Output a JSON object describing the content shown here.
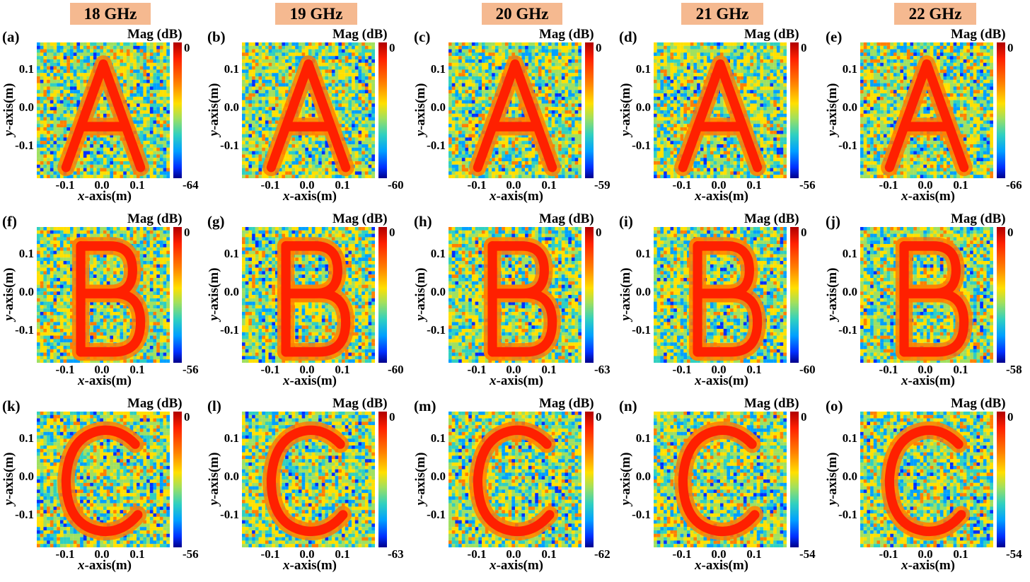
{
  "frequencies": [
    "18 GHz",
    "19 GHz",
    "20 GHz",
    "21 GHz",
    "22 GHz"
  ],
  "colorbar_title": "Mag (dB)",
  "colormap": [
    "#00008a",
    "#0030ff",
    "#00a0ff",
    "#30d0c0",
    "#9fe060",
    "#ffe000",
    "#ff8000",
    "#ff2000",
    "#b00000"
  ],
  "axes": {
    "xlabel_var": "x",
    "xlabel_rest": "-axis(m)",
    "ylabel_var": "y",
    "ylabel_rest": "-axis(m)",
    "x_ticks": [
      "-0.1",
      "0.0",
      "0.1"
    ],
    "y_ticks": [
      "0.1",
      "0.0",
      "-0.1"
    ]
  },
  "chart_data": [
    {
      "type": "heatmap",
      "panel": "(a)",
      "frequency": "18 GHz",
      "letter": "A",
      "colorbar_max": "0",
      "colorbar_min": "-64",
      "xlim": [
        -0.18,
        0.18
      ],
      "ylim": [
        -0.18,
        0.18
      ]
    },
    {
      "type": "heatmap",
      "panel": "(b)",
      "frequency": "19 GHz",
      "letter": "A",
      "colorbar_max": "0",
      "colorbar_min": "-60",
      "xlim": [
        -0.18,
        0.18
      ],
      "ylim": [
        -0.18,
        0.18
      ]
    },
    {
      "type": "heatmap",
      "panel": "(c)",
      "frequency": "20 GHz",
      "letter": "A",
      "colorbar_max": "0",
      "colorbar_min": "-59",
      "xlim": [
        -0.18,
        0.18
      ],
      "ylim": [
        -0.18,
        0.18
      ]
    },
    {
      "type": "heatmap",
      "panel": "(d)",
      "frequency": "21 GHz",
      "letter": "A",
      "colorbar_max": "0",
      "colorbar_min": "-56",
      "xlim": [
        -0.18,
        0.18
      ],
      "ylim": [
        -0.18,
        0.18
      ]
    },
    {
      "type": "heatmap",
      "panel": "(e)",
      "frequency": "22 GHz",
      "letter": "A",
      "colorbar_max": "0",
      "colorbar_min": "-66",
      "xlim": [
        -0.18,
        0.18
      ],
      "ylim": [
        -0.18,
        0.18
      ]
    },
    {
      "type": "heatmap",
      "panel": "(f)",
      "frequency": "18 GHz",
      "letter": "B",
      "colorbar_max": "0",
      "colorbar_min": "-56",
      "xlim": [
        -0.18,
        0.18
      ],
      "ylim": [
        -0.18,
        0.18
      ]
    },
    {
      "type": "heatmap",
      "panel": "(g)",
      "frequency": "19 GHz",
      "letter": "B",
      "colorbar_max": "0",
      "colorbar_min": "-60",
      "xlim": [
        -0.18,
        0.18
      ],
      "ylim": [
        -0.18,
        0.18
      ]
    },
    {
      "type": "heatmap",
      "panel": "(h)",
      "frequency": "20 GHz",
      "letter": "B",
      "colorbar_max": "0",
      "colorbar_min": "-63",
      "xlim": [
        -0.18,
        0.18
      ],
      "ylim": [
        -0.18,
        0.18
      ]
    },
    {
      "type": "heatmap",
      "panel": "(i)",
      "frequency": "21 GHz",
      "letter": "B",
      "colorbar_max": "0",
      "colorbar_min": "-60",
      "xlim": [
        -0.18,
        0.18
      ],
      "ylim": [
        -0.18,
        0.18
      ]
    },
    {
      "type": "heatmap",
      "panel": "(j)",
      "frequency": "22 GHz",
      "letter": "B",
      "colorbar_max": "0",
      "colorbar_min": "-58",
      "xlim": [
        -0.18,
        0.18
      ],
      "ylim": [
        -0.18,
        0.18
      ]
    },
    {
      "type": "heatmap",
      "panel": "(k)",
      "frequency": "18 GHz",
      "letter": "C",
      "colorbar_max": "0",
      "colorbar_min": "-56",
      "xlim": [
        -0.18,
        0.18
      ],
      "ylim": [
        -0.18,
        0.18
      ]
    },
    {
      "type": "heatmap",
      "panel": "(l)",
      "frequency": "19 GHz",
      "letter": "C",
      "colorbar_max": "0",
      "colorbar_min": "-63",
      "xlim": [
        -0.18,
        0.18
      ],
      "ylim": [
        -0.18,
        0.18
      ]
    },
    {
      "type": "heatmap",
      "panel": "(m)",
      "frequency": "20 GHz",
      "letter": "C",
      "colorbar_max": "0",
      "colorbar_min": "-62",
      "xlim": [
        -0.18,
        0.18
      ],
      "ylim": [
        -0.18,
        0.18
      ]
    },
    {
      "type": "heatmap",
      "panel": "(n)",
      "frequency": "21 GHz",
      "letter": "C",
      "colorbar_max": "0",
      "colorbar_min": "-54",
      "xlim": [
        -0.18,
        0.18
      ],
      "ylim": [
        -0.18,
        0.18
      ]
    },
    {
      "type": "heatmap",
      "panel": "(o)",
      "frequency": "22 GHz",
      "letter": "C",
      "colorbar_max": "0",
      "colorbar_min": "-54",
      "xlim": [
        -0.18,
        0.18
      ],
      "ylim": [
        -0.18,
        0.18
      ]
    }
  ]
}
